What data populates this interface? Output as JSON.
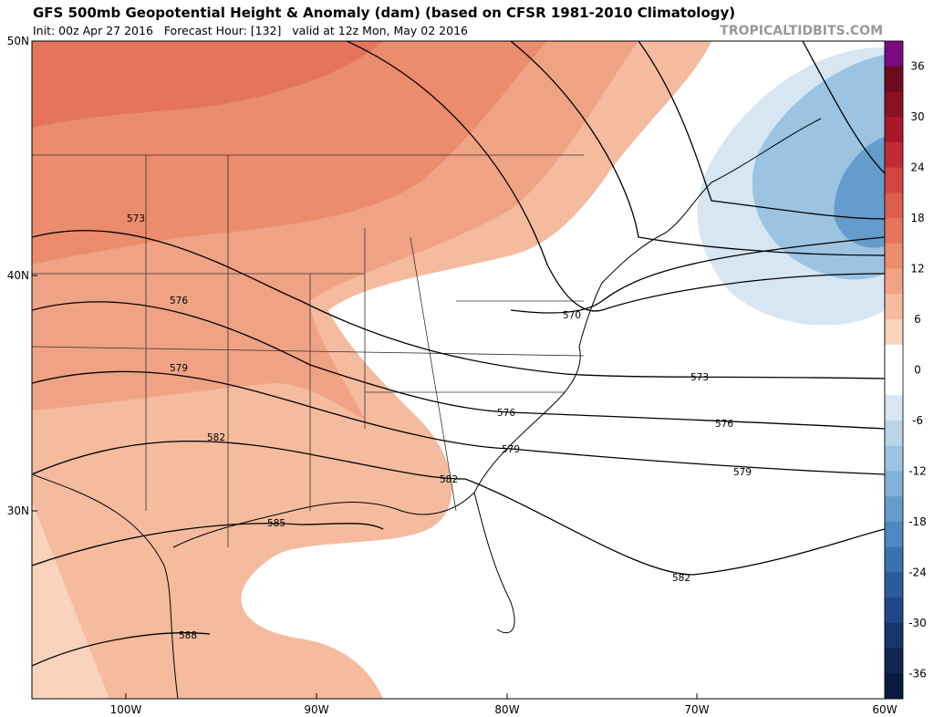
{
  "header": {
    "title": "GFS 500mb Geopotential Height & Anomaly (dam) (based on CFSR 1981-2010 Climatology)",
    "subtitle": "Init: 00z Apr 27 2016   Forecast Hour: [132]   valid at 12z Mon, May 02 2016",
    "watermark": "TROPICALTIDBITS.COM"
  },
  "map": {
    "lat_labels": [
      "50N",
      "40N",
      "30N"
    ],
    "lon_labels": [
      "100W",
      "90W",
      "80W",
      "70W",
      "60W"
    ],
    "contour_labels": [
      "573",
      "573",
      "576",
      "576",
      "576",
      "579",
      "579",
      "579",
      "582",
      "582",
      "582",
      "585",
      "588",
      "570"
    ]
  },
  "colorbar": {
    "labels": [
      "36",
      "30",
      "24",
      "18",
      "12",
      "6",
      "0",
      "-6",
      "-12",
      "-18",
      "-24",
      "-30",
      "-36"
    ],
    "colors": [
      "#7a0a82",
      "#6e0a1e",
      "#8b1020",
      "#a8182a",
      "#c42a35",
      "#d1443f",
      "#dc5e4c",
      "#e4755a",
      "#eb8c6c",
      "#f0a384",
      "#f5bb9f",
      "#fad3bd",
      "#ffffff",
      "#ffffff",
      "#d6e6f2",
      "#b9d5ea",
      "#9cc3e1",
      "#80b1d7",
      "#649dcb",
      "#4d88be",
      "#3a72ae",
      "#2b5c9a",
      "#1f4784",
      "#17346b",
      "#102552",
      "#0a1a3d"
    ]
  }
}
